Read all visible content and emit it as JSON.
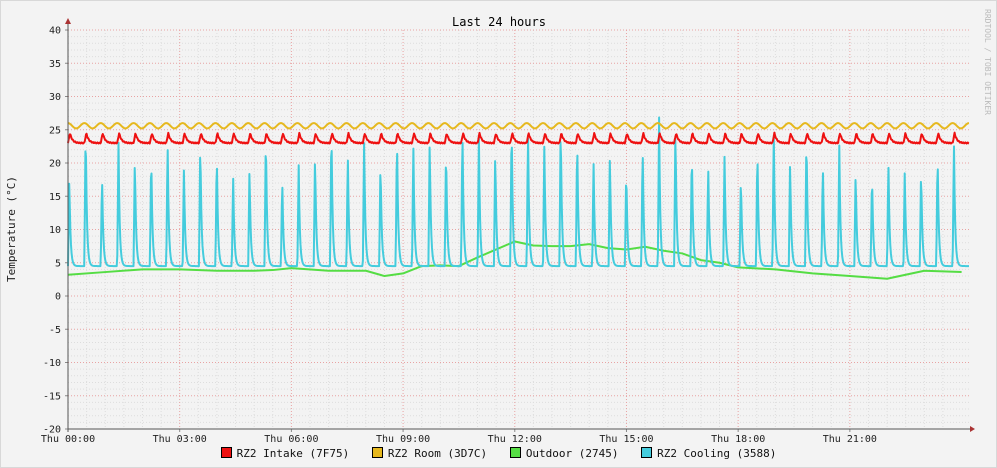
{
  "chart_data": {
    "type": "line",
    "title": "Last 24 hours",
    "ylabel": "Temperature (°C)",
    "watermark": "RRDTOOL / TOBI OETIKER",
    "ylim": [
      -20,
      40
    ],
    "y_ticks": [
      40,
      35,
      30,
      25,
      20,
      15,
      10,
      5,
      0,
      -5,
      -10,
      -15,
      -20
    ],
    "x_range_hours": [
      0,
      24.2
    ],
    "x_ticks": [
      {
        "hour": 0,
        "label": "Thu 00:00"
      },
      {
        "hour": 3,
        "label": "Thu 03:00"
      },
      {
        "hour": 6,
        "label": "Thu 06:00"
      },
      {
        "hour": 9,
        "label": "Thu 09:00"
      },
      {
        "hour": 12,
        "label": "Thu 12:00"
      },
      {
        "hour": 15,
        "label": "Thu 15:00"
      },
      {
        "hour": 18,
        "label": "Thu 18:00"
      },
      {
        "hour": 21,
        "label": "Thu 21:00"
      }
    ],
    "grid": true,
    "legend_position": "bottom",
    "series": [
      {
        "name": "RZ2 Intake (7F75)",
        "color": "#ee1111",
        "pattern": {
          "cycles": 55,
          "min": 23.0,
          "max": 24.5
        }
      },
      {
        "name": "RZ2 Room (3D7C)",
        "color": "#e6b81e",
        "pattern": {
          "cycles": 55,
          "min": 25.2,
          "max": 26.0
        }
      },
      {
        "name": "Outdoor (2745)",
        "color": "#55dd44",
        "x": [
          0,
          1,
          2,
          3,
          4,
          5,
          5.5,
          6,
          7,
          8,
          8.5,
          9,
          9.5,
          10,
          10.5,
          11,
          11.5,
          12,
          12.5,
          13,
          13.5,
          14,
          14.5,
          15,
          15.5,
          16,
          16.5,
          17,
          17.5,
          18,
          19,
          20,
          21,
          21.5,
          22,
          23,
          24
        ],
        "y": [
          3.2,
          3.6,
          4.0,
          4.0,
          3.8,
          3.8,
          3.9,
          4.2,
          3.8,
          3.8,
          3.0,
          3.4,
          4.5,
          4.6,
          4.5,
          5.8,
          7.0,
          8.2,
          7.6,
          7.5,
          7.5,
          7.8,
          7.2,
          7.0,
          7.4,
          6.8,
          6.4,
          5.4,
          5.0,
          4.3,
          4.0,
          3.4,
          3.0,
          2.8,
          2.6,
          3.8,
          3.6
        ]
      },
      {
        "name": "RZ2 Cooling (3588)",
        "color": "#44ccdd",
        "pattern": {
          "cycles": 55,
          "min": 4.5,
          "peak_min": 18.0,
          "peak_max": 27.0
        }
      }
    ]
  }
}
